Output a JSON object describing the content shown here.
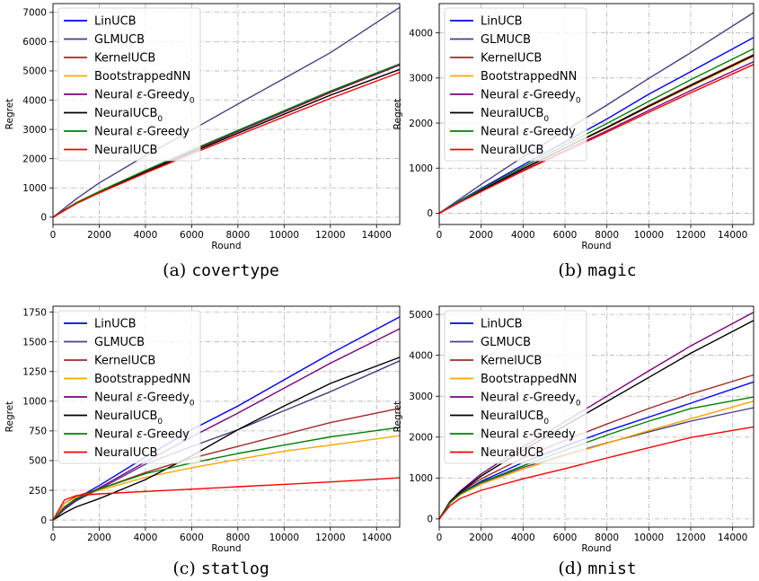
{
  "series_styles": [
    {
      "name": "LinUCB",
      "color": "#0000ff"
    },
    {
      "name": "GLMUCB",
      "color": "#483d8b"
    },
    {
      "name": "KernelUCB",
      "color": "#a52a2a"
    },
    {
      "name": "BootstrappedNN",
      "color": "#ffa500"
    },
    {
      "name": "Neural ε-Greedy₀",
      "color": "#800080"
    },
    {
      "name": "NeuralUCB₀",
      "color": "#000000"
    },
    {
      "name": "Neural ε-Greedy",
      "color": "#008000"
    },
    {
      "name": "NeuralUCB",
      "color": "#ff0000"
    }
  ],
  "chart_data": [
    {
      "type": "line",
      "caption_prefix": "(a)",
      "caption_name": "covertype",
      "xlabel": "Round",
      "ylabel": "Regret",
      "xlim": [
        0,
        15000
      ],
      "ylim": [
        -250,
        7300
      ],
      "xticks": [
        0,
        2000,
        4000,
        6000,
        8000,
        10000,
        12000,
        14000
      ],
      "yticks": [
        0,
        1000,
        2000,
        3000,
        4000,
        5000,
        6000,
        7000
      ],
      "grid": true,
      "legend": "top-left",
      "x": [
        0,
        1000,
        2000,
        4000,
        6000,
        8000,
        10000,
        12000,
        15000
      ],
      "series": [
        {
          "name": "LinUCB",
          "values": [
            0,
            480,
            870,
            1580,
            2270,
            2950,
            3620,
            4290,
            5220
          ]
        },
        {
          "name": "GLMUCB",
          "values": [
            0,
            620,
            1170,
            2100,
            2980,
            3870,
            4740,
            5620,
            7170
          ]
        },
        {
          "name": "KernelUCB",
          "values": [
            0,
            480,
            860,
            1570,
            2250,
            2930,
            3590,
            4260,
            5200
          ]
        },
        {
          "name": "BootstrappedNN",
          "values": [
            0,
            490,
            880,
            1590,
            2280,
            2960,
            3630,
            4300,
            5230
          ]
        },
        {
          "name": "Neural ε-Greedy₀",
          "values": [
            0,
            480,
            870,
            1580,
            2260,
            2940,
            3610,
            4280,
            5210
          ]
        },
        {
          "name": "NeuralUCB₀",
          "values": [
            0,
            470,
            840,
            1540,
            2210,
            2870,
            3520,
            4170,
            5050
          ]
        },
        {
          "name": "Neural ε-Greedy",
          "values": [
            0,
            490,
            880,
            1600,
            2290,
            2970,
            3640,
            4310,
            5240
          ]
        },
        {
          "name": "NeuralUCB",
          "values": [
            0,
            460,
            830,
            1510,
            2160,
            2800,
            3430,
            4060,
            4950
          ]
        }
      ]
    },
    {
      "type": "line",
      "caption_prefix": "(b)",
      "caption_name": "magic",
      "xlabel": "Round",
      "ylabel": "Regret",
      "xlim": [
        0,
        15000
      ],
      "ylim": [
        -250,
        4650
      ],
      "xticks": [
        0,
        2000,
        4000,
        6000,
        8000,
        10000,
        12000,
        14000
      ],
      "yticks": [
        0,
        1000,
        2000,
        3000,
        4000
      ],
      "grid": true,
      "legend": "top-left",
      "x": [
        0,
        1000,
        2000,
        4000,
        6000,
        8000,
        10000,
        12000,
        15000
      ],
      "series": [
        {
          "name": "LinUCB",
          "values": [
            0,
            280,
            550,
            1070,
            1580,
            2090,
            2640,
            3140,
            3900
          ]
        },
        {
          "name": "GLMUCB",
          "values": [
            0,
            320,
            640,
            1250,
            1830,
            2400,
            2990,
            3560,
            4450
          ]
        },
        {
          "name": "KernelUCB",
          "values": [
            0,
            260,
            510,
            990,
            1450,
            1910,
            2390,
            2850,
            3520
          ]
        },
        {
          "name": "BootstrappedNN",
          "values": [
            0,
            255,
            505,
            980,
            1440,
            1890,
            2360,
            2810,
            3480
          ]
        },
        {
          "name": "Neural ε-Greedy₀",
          "values": [
            0,
            250,
            490,
            950,
            1390,
            1830,
            2280,
            2720,
            3360
          ]
        },
        {
          "name": "NeuralUCB₀",
          "values": [
            0,
            258,
            508,
            985,
            1445,
            1900,
            2370,
            2830,
            3500
          ]
        },
        {
          "name": "Neural ε-Greedy",
          "values": [
            0,
            270,
            530,
            1030,
            1510,
            1990,
            2480,
            2960,
            3650
          ]
        },
        {
          "name": "NeuralUCB",
          "values": [
            0,
            245,
            480,
            935,
            1370,
            1800,
            2240,
            2670,
            3300
          ]
        }
      ]
    },
    {
      "type": "line",
      "caption_prefix": "(c)",
      "caption_name": "statlog",
      "xlabel": "Round",
      "ylabel": "Regret",
      "xlim": [
        0,
        15000
      ],
      "ylim": [
        -60,
        1800
      ],
      "xticks": [
        0,
        2000,
        4000,
        6000,
        8000,
        10000,
        12000,
        14000
      ],
      "yticks": [
        0,
        250,
        500,
        750,
        1000,
        1250,
        1500,
        1750
      ],
      "grid": true,
      "legend": "top-left",
      "x": [
        0,
        500,
        1000,
        2000,
        4000,
        6000,
        8000,
        10000,
        12000,
        15000
      ],
      "series": [
        {
          "name": "LinUCB",
          "values": [
            0,
            110,
            180,
            290,
            530,
            760,
            960,
            1180,
            1400,
            1710
          ]
        },
        {
          "name": "GLMUCB",
          "values": [
            0,
            90,
            160,
            260,
            470,
            620,
            760,
            920,
            1080,
            1340
          ]
        },
        {
          "name": "KernelUCB",
          "values": [
            0,
            140,
            200,
            260,
            400,
            520,
            620,
            720,
            820,
            940
          ]
        },
        {
          "name": "BootstrappedNN",
          "values": [
            0,
            140,
            190,
            250,
            360,
            440,
            510,
            580,
            630,
            710
          ]
        },
        {
          "name": "Neural ε-Greedy₀",
          "values": [
            0,
            100,
            170,
            270,
            490,
            700,
            900,
            1110,
            1320,
            1610
          ]
        },
        {
          "name": "NeuralUCB₀",
          "values": [
            0,
            60,
            110,
            180,
            340,
            540,
            760,
            960,
            1150,
            1370
          ]
        },
        {
          "name": "Neural ε-Greedy",
          "values": [
            0,
            110,
            180,
            260,
            390,
            480,
            560,
            630,
            700,
            780
          ]
        },
        {
          "name": "NeuralUCB",
          "values": [
            0,
            170,
            205,
            220,
            240,
            260,
            280,
            300,
            320,
            355
          ]
        }
      ]
    },
    {
      "type": "line",
      "caption_prefix": "(d)",
      "caption_name": "mnist",
      "xlabel": "Round",
      "ylabel": "Regret",
      "xlim": [
        0,
        15000
      ],
      "ylim": [
        -200,
        5200
      ],
      "xticks": [
        0,
        2000,
        4000,
        6000,
        8000,
        10000,
        12000,
        14000
      ],
      "yticks": [
        0,
        1000,
        2000,
        3000,
        4000,
        5000
      ],
      "grid": true,
      "legend": "top-left",
      "x": [
        0,
        500,
        1000,
        2000,
        4000,
        6000,
        8000,
        10000,
        12000,
        15000
      ],
      "series": [
        {
          "name": "LinUCB",
          "values": [
            0,
            400,
            620,
            920,
            1380,
            1780,
            2150,
            2490,
            2830,
            3350
          ]
        },
        {
          "name": "GLMUCB",
          "values": [
            0,
            380,
            600,
            880,
            1260,
            1570,
            1860,
            2130,
            2390,
            2720
          ]
        },
        {
          "name": "KernelUCB",
          "values": [
            0,
            420,
            650,
            980,
            1490,
            1920,
            2320,
            2700,
            3050,
            3520
          ]
        },
        {
          "name": "BootstrappedNN",
          "values": [
            0,
            380,
            590,
            850,
            1220,
            1540,
            1850,
            2160,
            2450,
            2880
          ]
        },
        {
          "name": "Neural ε-Greedy₀",
          "values": [
            0,
            420,
            680,
            1100,
            1760,
            2380,
            3000,
            3620,
            4230,
            5050
          ]
        },
        {
          "name": "NeuralUCB₀",
          "values": [
            0,
            400,
            650,
            1050,
            1680,
            2280,
            2870,
            3460,
            4050,
            4850
          ]
        },
        {
          "name": "Neural ε-Greedy",
          "values": [
            0,
            390,
            610,
            890,
            1300,
            1680,
            2050,
            2390,
            2700,
            2980
          ]
        },
        {
          "name": "NeuralUCB",
          "values": [
            0,
            320,
            500,
            700,
            980,
            1230,
            1490,
            1740,
            1990,
            2250
          ]
        }
      ]
    }
  ]
}
